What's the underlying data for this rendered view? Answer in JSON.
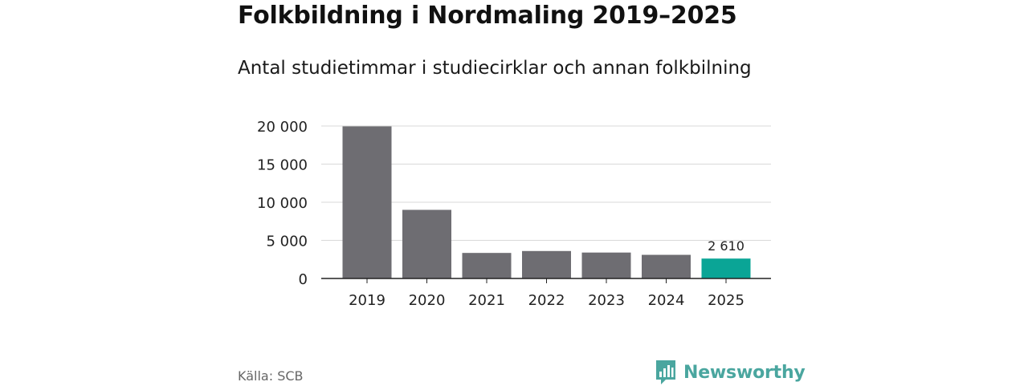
{
  "title": "Folkbildning i Nordmaling 2019–2025",
  "subtitle": "Antal studietimmar i studiecirklar och annan folkbilning",
  "source": "Källa: SCB",
  "brand": {
    "name": "Newsworthy",
    "color": "#4aa69f",
    "icon": "bar-chart-speech-bubble-icon"
  },
  "colors": {
    "bar": "#6e6d72",
    "highlight": "#0aa596",
    "grid": "#d9d9d9",
    "axis": "#222222"
  },
  "chart_data": {
    "type": "bar",
    "categories": [
      "2019",
      "2020",
      "2021",
      "2022",
      "2023",
      "2024",
      "2025"
    ],
    "values": [
      19950,
      9000,
      3350,
      3600,
      3400,
      3100,
      2610
    ],
    "highlight_index": 6,
    "data_labels": [
      {
        "index": 6,
        "text": "2 610"
      }
    ],
    "y_ticks": [
      {
        "value": 0,
        "label": "0"
      },
      {
        "value": 5000,
        "label": "5 000"
      },
      {
        "value": 10000,
        "label": "10 000"
      },
      {
        "value": 15000,
        "label": "15 000"
      },
      {
        "value": 20000,
        "label": "20 000"
      }
    ],
    "ylim": [
      0,
      20000
    ],
    "grid": true,
    "legend": "none"
  }
}
